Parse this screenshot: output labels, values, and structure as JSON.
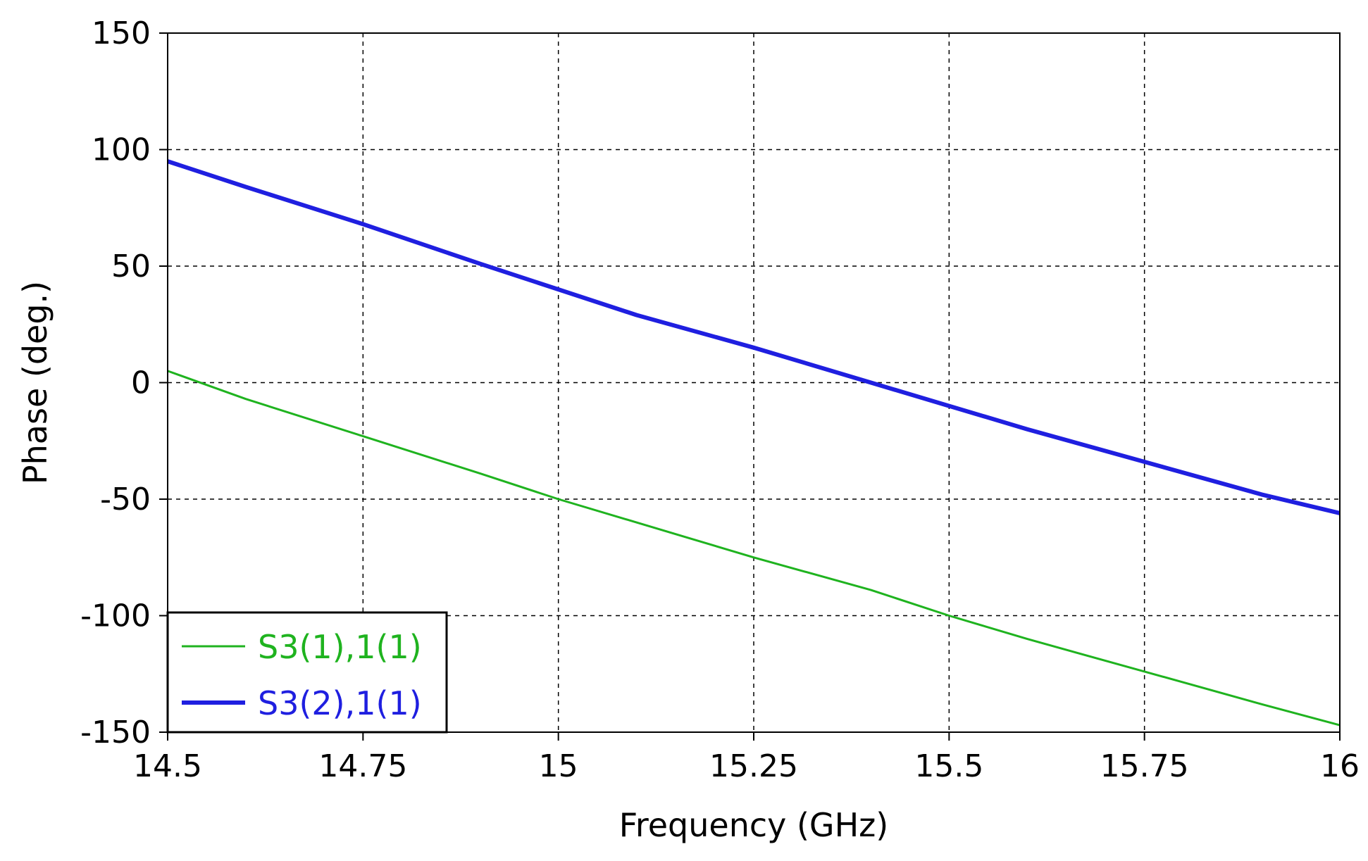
{
  "chart_data": {
    "type": "line",
    "title": "",
    "xlabel": "Frequency (GHz)",
    "ylabel": "Phase (deg.)",
    "xlim": [
      14.5,
      16
    ],
    "ylim": [
      -150,
      150
    ],
    "x_ticks": [
      "14.5",
      "14.75",
      "15",
      "15.25",
      "15.5",
      "15.75",
      "16"
    ],
    "y_ticks": [
      "150",
      "100",
      "50",
      "0",
      "-50",
      "-100",
      "-150"
    ],
    "grid": true,
    "legend_position": "bottom-left",
    "series": [
      {
        "name": "S3(1),1(1)",
        "color": "#1fb31f",
        "x": [
          14.5,
          14.6,
          14.75,
          14.9,
          15.0,
          15.1,
          15.25,
          15.4,
          15.5,
          15.6,
          15.75,
          15.9,
          16.0
        ],
        "y": [
          5,
          -7,
          -23,
          -39,
          -50,
          -60,
          -75,
          -89,
          -100,
          -110,
          -124,
          -138,
          -147
        ]
      },
      {
        "name": "S3(2),1(1)",
        "color": "#1f1fe0",
        "x": [
          14.5,
          14.6,
          14.75,
          14.9,
          15.0,
          15.1,
          15.25,
          15.4,
          15.5,
          15.6,
          15.75,
          15.9,
          16.0
        ],
        "y": [
          95,
          84,
          68,
          51,
          40,
          29,
          15,
          0,
          -10,
          -20,
          -34,
          -48,
          -56
        ]
      }
    ]
  }
}
